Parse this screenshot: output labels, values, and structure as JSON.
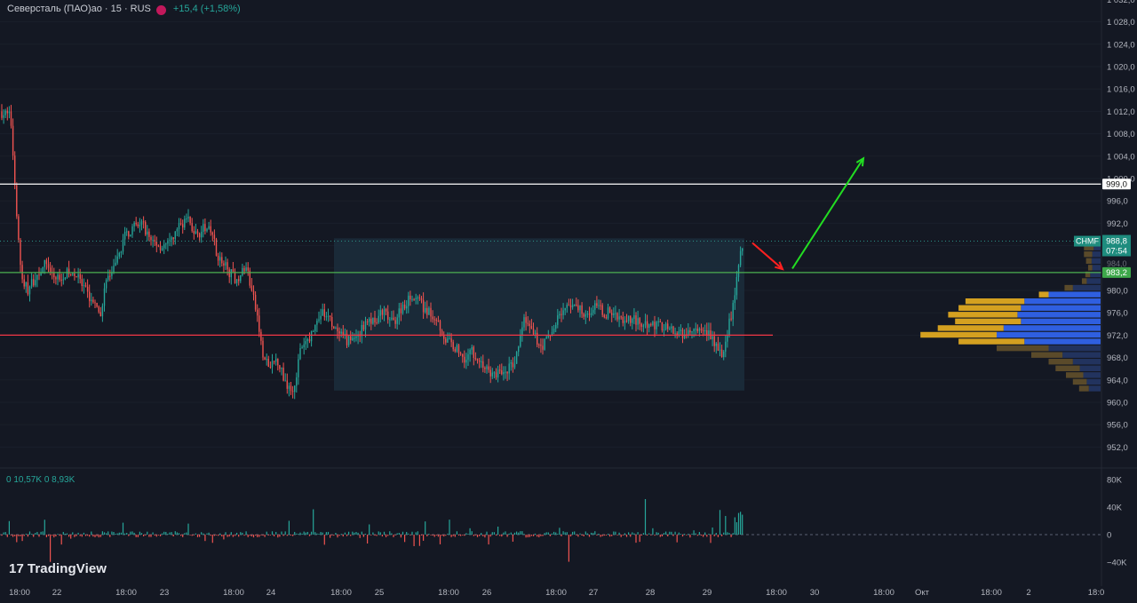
{
  "header": {
    "symbol": "Северсталь (ПАО)ао · 15 · RUS",
    "change": "+15,4 (+1,58%)"
  },
  "volume_legend": "0 10,57K 0 8,93K",
  "logo": {
    "mark": "17",
    "text": "TradingView"
  },
  "price_badges": {
    "last_ticker": "CHMF",
    "last_price": "988,8",
    "countdown": "07:54",
    "green_level": "983,2",
    "white_level": "999,0",
    "hidden_label": "984,0"
  },
  "colors": {
    "background": "#141823",
    "up": "#26a69a",
    "down": "#ef5350",
    "white_line": "#e8e8e8",
    "green_line": "#4caf50",
    "red_line": "#f23645",
    "box": "#1c3040",
    "vp_up": "#2f5fe0",
    "vp_down": "#d4a020",
    "arrow_up": "#22dd22",
    "arrow_down": "#ff2020"
  },
  "chart_data": [
    {
      "type": "candlestick",
      "title": "Северсталь (ПАО)ао · 15 · RUS",
      "y_axis": {
        "ticks": [
          952,
          956,
          960,
          964,
          968,
          972,
          976,
          980,
          984,
          988,
          992,
          996,
          1000,
          1004,
          1008,
          1012,
          1016,
          1020,
          1024,
          1028,
          1032
        ],
        "tick_labels": [
          "952,0",
          "956,0",
          "960,0",
          "964,0",
          "968,0",
          "972,0",
          "976,0",
          "980,0",
          "984,0",
          "988,0",
          "992,0",
          "996,0",
          "1 000,0",
          "1 004,0",
          "1 008,0",
          "1 012,0",
          "1 016,0",
          "1 020,0",
          "1 024,0",
          "1 028,0",
          "1 032,0"
        ],
        "range": [
          948.5,
          1032.5
        ]
      },
      "x_axis": {
        "tick_labels": [
          "18:00",
          "22",
          "18:00",
          "23",
          "18:00",
          "24",
          "18:00",
          "25",
          "18:00",
          "26",
          "18:00",
          "27",
          "28",
          "29",
          "18:00",
          "30",
          "18:00",
          "Окт",
          "18:00",
          "2",
          "18:0"
        ]
      },
      "horizontal_levels": [
        {
          "value": 999.0,
          "label": "999,0",
          "color": "white"
        },
        {
          "value": 983.2,
          "label": "983,2",
          "color": "green"
        },
        {
          "value": 972.0,
          "label": "",
          "color": "red"
        }
      ],
      "last_price": 988.8,
      "range_box": {
        "price_top": 989.3,
        "price_bottom": 962.1,
        "from": "24 18:00",
        "to": "29 15:00"
      },
      "arrows": [
        {
          "color": "red",
          "from": [
            988.5,
            "29 15:00"
          ],
          "to": [
            983.8,
            "29 18:00"
          ]
        },
        {
          "color": "green",
          "from": [
            983.9,
            "29 18:00"
          ],
          "to": [
            1003.6,
            "30 14:00"
          ]
        }
      ],
      "path_anchors": [
        [
          0,
          1012
        ],
        [
          12,
          1011
        ],
        [
          18,
          996
        ],
        [
          24,
          982
        ],
        [
          32,
          980
        ],
        [
          38,
          982
        ],
        [
          52,
          985
        ],
        [
          62,
          982
        ],
        [
          72,
          983
        ],
        [
          85,
          983
        ],
        [
          95,
          980
        ],
        [
          105,
          978
        ],
        [
          112,
          975
        ],
        [
          120,
          982
        ],
        [
          130,
          984
        ],
        [
          140,
          990
        ],
        [
          150,
          991
        ],
        [
          160,
          992
        ],
        [
          170,
          989
        ],
        [
          180,
          988
        ],
        [
          190,
          988
        ],
        [
          200,
          991
        ],
        [
          210,
          993
        ],
        [
          220,
          990
        ],
        [
          230,
          991
        ],
        [
          240,
          990
        ],
        [
          245,
          986
        ],
        [
          255,
          984
        ],
        [
          265,
          982
        ],
        [
          278,
          984
        ],
        [
          290,
          975
        ],
        [
          296,
          968
        ],
        [
          305,
          966
        ],
        [
          312,
          968
        ],
        [
          320,
          964
        ],
        [
          330,
          962
        ],
        [
          338,
          969
        ],
        [
          350,
          972
        ],
        [
          362,
          976
        ],
        [
          370,
          975
        ],
        [
          380,
          972
        ],
        [
          392,
          971
        ],
        [
          402,
          972
        ],
        [
          412,
          974
        ],
        [
          422,
          975
        ],
        [
          432,
          976
        ],
        [
          442,
          974
        ],
        [
          452,
          977
        ],
        [
          462,
          979
        ],
        [
          472,
          978
        ],
        [
          482,
          976
        ],
        [
          492,
          975
        ],
        [
          502,
          971
        ],
        [
          512,
          970
        ],
        [
          522,
          968
        ],
        [
          532,
          969
        ],
        [
          542,
          967
        ],
        [
          552,
          965
        ],
        [
          562,
          965
        ],
        [
          572,
          966
        ],
        [
          580,
          967
        ],
        [
          590,
          975
        ],
        [
          600,
          972
        ],
        [
          610,
          970
        ],
        [
          620,
          972
        ],
        [
          630,
          976
        ],
        [
          640,
          977
        ],
        [
          650,
          977
        ],
        [
          660,
          976
        ],
        [
          670,
          977
        ],
        [
          680,
          976
        ],
        [
          690,
          976
        ],
        [
          700,
          975
        ],
        [
          712,
          975
        ],
        [
          722,
          974
        ],
        [
          732,
          974
        ],
        [
          742,
          974
        ],
        [
          752,
          973
        ],
        [
          762,
          972
        ],
        [
          772,
          972
        ],
        [
          782,
          973
        ],
        [
          792,
          972
        ],
        [
          800,
          972
        ],
        [
          808,
          970
        ],
        [
          814,
          968
        ],
        [
          818,
          972
        ],
        [
          822,
          975
        ],
        [
          826,
          978
        ],
        [
          830,
          982
        ],
        [
          834,
          987
        ],
        [
          836,
          988.8
        ]
      ]
    },
    {
      "type": "bar",
      "title": "Volume",
      "y_axis": {
        "ticks": [
          -40,
          0,
          40,
          80
        ],
        "tick_labels": [
          "−40K",
          "0",
          "40K",
          "80K"
        ],
        "range": [
          -52,
          85
        ]
      }
    },
    {
      "type": "bar",
      "title": "Volume profile",
      "price_bins": [
        987.6,
        986.4,
        985.2,
        984.0,
        982.8,
        981.6,
        980.4,
        979.2,
        978.0,
        976.8,
        975.6,
        974.4,
        973.2,
        972.0,
        970.8,
        969.6,
        968.4,
        967.2,
        966.0,
        964.8,
        963.6,
        962.4
      ],
      "up_volume": [
        10,
        12,
        13,
        12,
        15,
        20,
        40,
        75,
        110,
        115,
        120,
        115,
        140,
        150,
        110,
        75,
        55,
        40,
        30,
        25,
        20,
        17
      ],
      "down_volume": [
        14,
        12,
        8,
        6,
        7,
        7,
        12,
        14,
        85,
        90,
        100,
        95,
        95,
        110,
        95,
        75,
        45,
        35,
        35,
        25,
        20,
        14
      ]
    }
  ]
}
